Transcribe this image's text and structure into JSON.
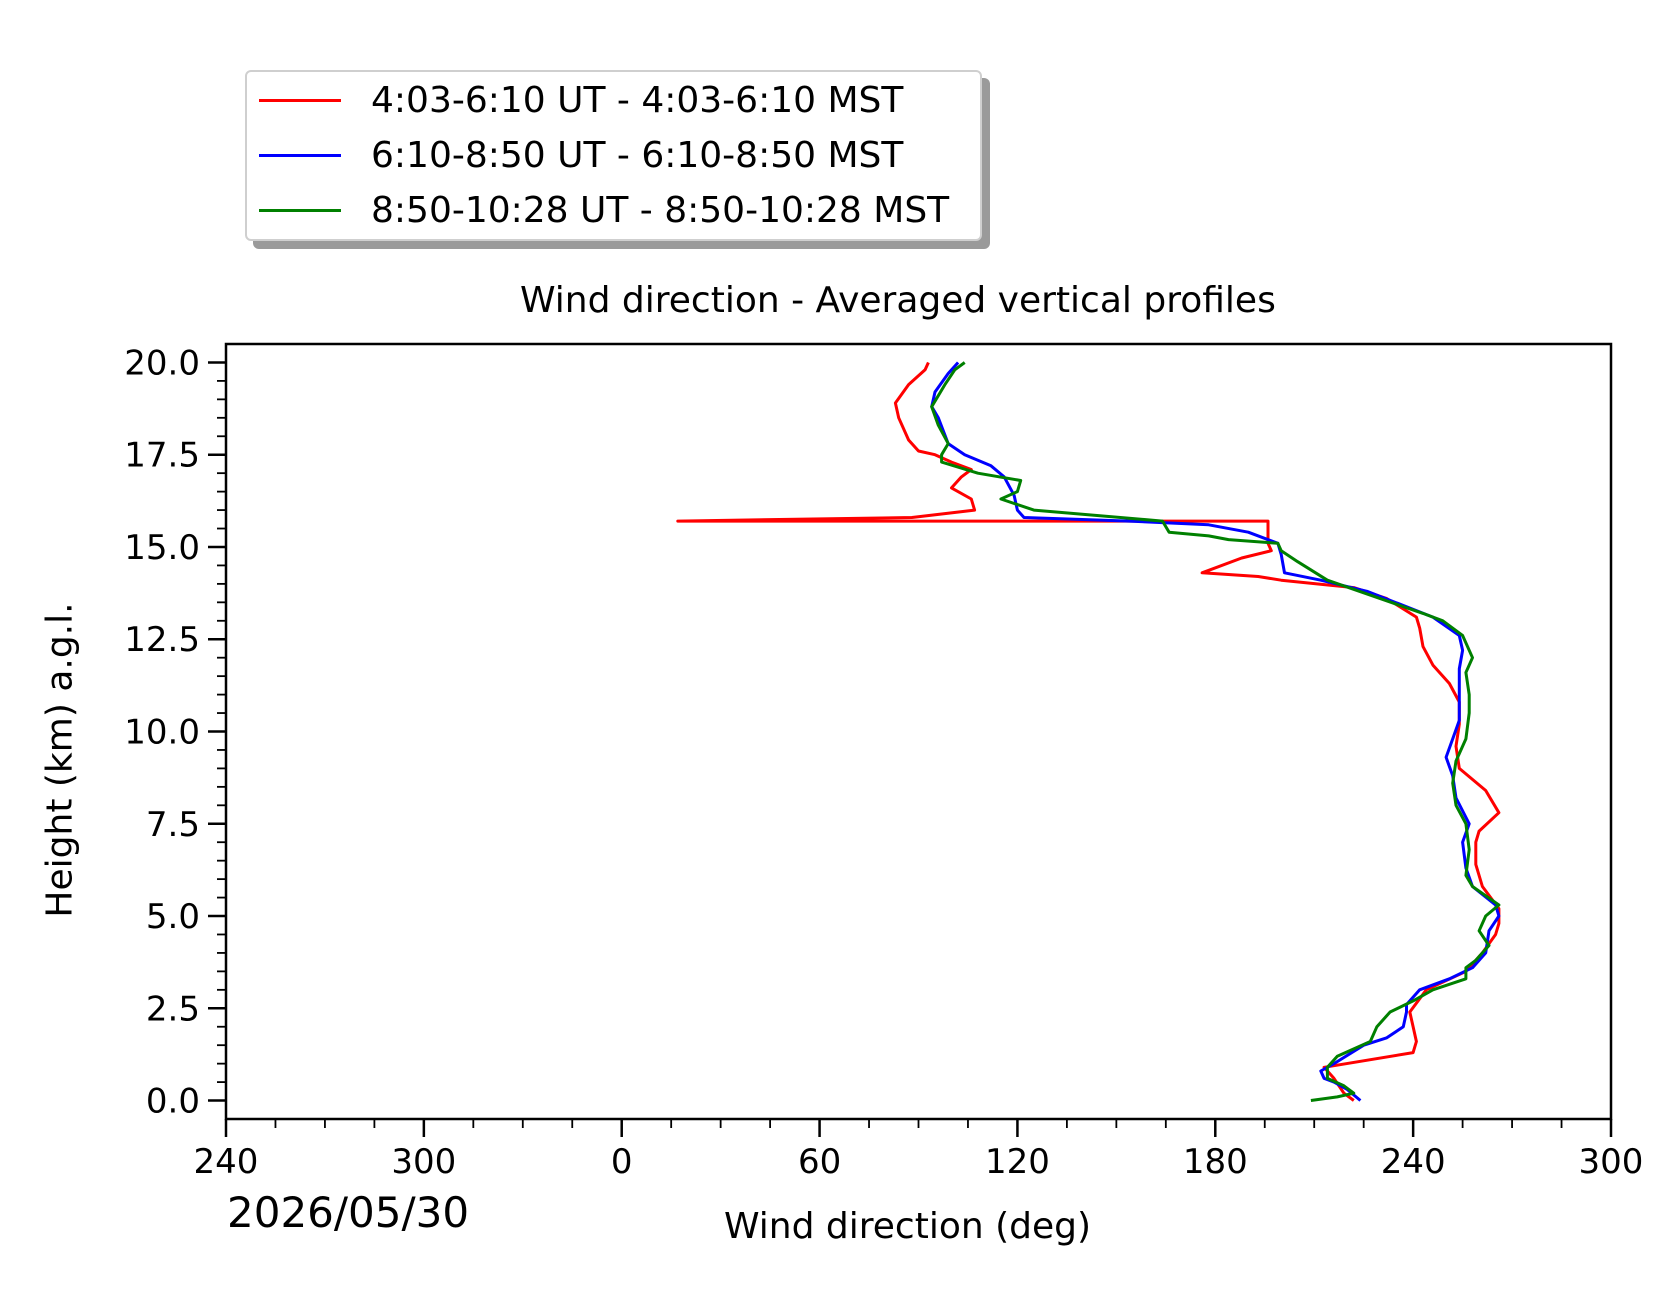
{
  "title": "Wind direction - Averaged vertical profiles",
  "date_label": "2026/05/30",
  "legend": [
    {
      "label": "4:03-6:10 UT - 4:03-6:10 MST",
      "color": "#ff0000"
    },
    {
      "label": "6:10-8:50 UT - 6:10-8:50 MST",
      "color": "#0000ff"
    },
    {
      "label": "8:50-10:28 UT - 8:50-10:28 MST",
      "color": "#008000"
    }
  ],
  "chart_data": {
    "type": "line",
    "title": "Wind direction - Averaged vertical profiles",
    "xlabel": "Wind direction (deg)",
    "ylabel": "Height (km) a.g.l.",
    "xlim_unwrapped": [
      240,
      660
    ],
    "x_tick_labels": [
      "240",
      "300",
      "0",
      "60",
      "120",
      "180",
      "240",
      "300"
    ],
    "x_tick_values_unwrapped": [
      240,
      300,
      360,
      420,
      480,
      540,
      600,
      660
    ],
    "ylim": [
      -0.5,
      20.5
    ],
    "y_tick_labels": [
      "0.0",
      "2.5",
      "5.0",
      "7.5",
      "10.0",
      "12.5",
      "15.0",
      "17.5",
      "20.0"
    ],
    "y_tick_values": [
      0,
      2.5,
      5,
      7.5,
      10,
      12.5,
      15,
      17.5,
      20
    ],
    "grid": false,
    "legend_position": "top-left, above plot",
    "series": [
      {
        "name": "4:03-6:10 UT - 4:03-6:10 MST",
        "color": "#ff0000",
        "points": [
          [
            222,
            0
          ],
          [
            219,
            0.2
          ],
          [
            216,
            0.6
          ],
          [
            213,
            0.9
          ],
          [
            240,
            1.3
          ],
          [
            241,
            1.6
          ],
          [
            240,
            2.0
          ],
          [
            239,
            2.4
          ],
          [
            244,
            3.0
          ],
          [
            256,
            3.5
          ],
          [
            261,
            4.0
          ],
          [
            265,
            4.5
          ],
          [
            266,
            4.8
          ],
          [
            266,
            5.2
          ],
          [
            261,
            5.8
          ],
          [
            259,
            6.4
          ],
          [
            259,
            7.0
          ],
          [
            260,
            7.3
          ],
          [
            266,
            7.8
          ],
          [
            262,
            8.4
          ],
          [
            254,
            9.0
          ],
          [
            253,
            9.6
          ],
          [
            254,
            10.2
          ],
          [
            254,
            10.8
          ],
          [
            251,
            11.3
          ],
          [
            246,
            11.8
          ],
          [
            243,
            12.3
          ],
          [
            242,
            12.8
          ],
          [
            241,
            13.1
          ],
          [
            232,
            13.6
          ],
          [
            222,
            13.9
          ],
          [
            200,
            14.1
          ],
          [
            193,
            14.2
          ],
          [
            176,
            14.3
          ],
          [
            188,
            14.7
          ],
          [
            197,
            14.9
          ],
          [
            196,
            15.1
          ],
          [
            196,
            15.7
          ],
          [
            17,
            15.7
          ],
          [
            88,
            15.8
          ],
          [
            107,
            16.0
          ],
          [
            106,
            16.3
          ],
          [
            100,
            16.6
          ],
          [
            103,
            16.9
          ],
          [
            106,
            17.1
          ],
          [
            100,
            17.3
          ],
          [
            95,
            17.5
          ],
          [
            90,
            17.6
          ],
          [
            87,
            17.9
          ],
          [
            84,
            18.5
          ],
          [
            83,
            18.9
          ],
          [
            87,
            19.4
          ],
          [
            92,
            19.8
          ],
          [
            93,
            20.0
          ]
        ]
      },
      {
        "name": "6:10-8:50 UT - 6:10-8:50 MST",
        "color": "#0000ff",
        "points": [
          [
            224,
            0
          ],
          [
            220,
            0.3
          ],
          [
            216,
            0.5
          ],
          [
            213,
            0.6
          ],
          [
            212,
            0.8
          ],
          [
            216,
            1.0
          ],
          [
            225,
            1.5
          ],
          [
            232,
            1.7
          ],
          [
            237,
            2.0
          ],
          [
            238,
            2.4
          ],
          [
            238,
            2.6
          ],
          [
            242,
            3.0
          ],
          [
            251,
            3.3
          ],
          [
            258,
            3.6
          ],
          [
            262,
            4.0
          ],
          [
            263,
            4.6
          ],
          [
            266,
            5.0
          ],
          [
            265,
            5.3
          ],
          [
            258,
            5.8
          ],
          [
            256,
            6.3
          ],
          [
            255,
            7.0
          ],
          [
            257,
            7.5
          ],
          [
            253,
            8.2
          ],
          [
            252,
            8.8
          ],
          [
            250,
            9.3
          ],
          [
            252,
            9.8
          ],
          [
            254,
            10.3
          ],
          [
            254,
            11.0
          ],
          [
            254,
            11.7
          ],
          [
            255,
            12.2
          ],
          [
            254,
            12.6
          ],
          [
            246,
            13.1
          ],
          [
            226,
            13.8
          ],
          [
            212,
            14.1
          ],
          [
            201,
            14.3
          ],
          [
            200,
            14.8
          ],
          [
            199,
            15.1
          ],
          [
            190,
            15.4
          ],
          [
            178,
            15.6
          ],
          [
            154,
            15.7
          ],
          [
            122,
            15.8
          ],
          [
            120,
            16.0
          ],
          [
            119,
            16.4
          ],
          [
            116,
            16.9
          ],
          [
            112,
            17.2
          ],
          [
            104,
            17.5
          ],
          [
            99,
            17.8
          ],
          [
            96,
            18.5
          ],
          [
            94,
            18.8
          ],
          [
            95,
            19.2
          ],
          [
            99,
            19.7
          ],
          [
            102,
            20.0
          ]
        ]
      },
      {
        "name": "8:50-10:28 UT - 8:50-10:28 MST",
        "color": "#008000",
        "points": [
          [
            209,
            0
          ],
          [
            217,
            0.1
          ],
          [
            222,
            0.2
          ],
          [
            219,
            0.4
          ],
          [
            214,
            0.6
          ],
          [
            214,
            0.9
          ],
          [
            217,
            1.2
          ],
          [
            227,
            1.6
          ],
          [
            229,
            2.0
          ],
          [
            233,
            2.4
          ],
          [
            240,
            2.7
          ],
          [
            246,
            3.0
          ],
          [
            256,
            3.3
          ],
          [
            256,
            3.6
          ],
          [
            259,
            3.8
          ],
          [
            263,
            4.2
          ],
          [
            260,
            4.6
          ],
          [
            262,
            5.0
          ],
          [
            266,
            5.3
          ],
          [
            258,
            5.8
          ],
          [
            256,
            6.1
          ],
          [
            257,
            6.8
          ],
          [
            256,
            7.5
          ],
          [
            253,
            8.0
          ],
          [
            252,
            8.6
          ],
          [
            253,
            9.2
          ],
          [
            256,
            9.8
          ],
          [
            257,
            10.5
          ],
          [
            257,
            11.0
          ],
          [
            256,
            11.6
          ],
          [
            258,
            12.0
          ],
          [
            255,
            12.6
          ],
          [
            249,
            13.0
          ],
          [
            243,
            13.2
          ],
          [
            230,
            13.6
          ],
          [
            214,
            14.1
          ],
          [
            205,
            14.6
          ],
          [
            200,
            14.9
          ],
          [
            199,
            15.1
          ],
          [
            184,
            15.2
          ],
          [
            178,
            15.3
          ],
          [
            166,
            15.4
          ],
          [
            164,
            15.7
          ],
          [
            125,
            16.0
          ],
          [
            115,
            16.3
          ],
          [
            120,
            16.5
          ],
          [
            121,
            16.8
          ],
          [
            108,
            17.0
          ],
          [
            97,
            17.3
          ],
          [
            97,
            17.5
          ],
          [
            99,
            17.8
          ],
          [
            96,
            18.3
          ],
          [
            94,
            18.8
          ],
          [
            98,
            19.4
          ],
          [
            101,
            19.8
          ],
          [
            104,
            20.0
          ]
        ]
      }
    ]
  }
}
